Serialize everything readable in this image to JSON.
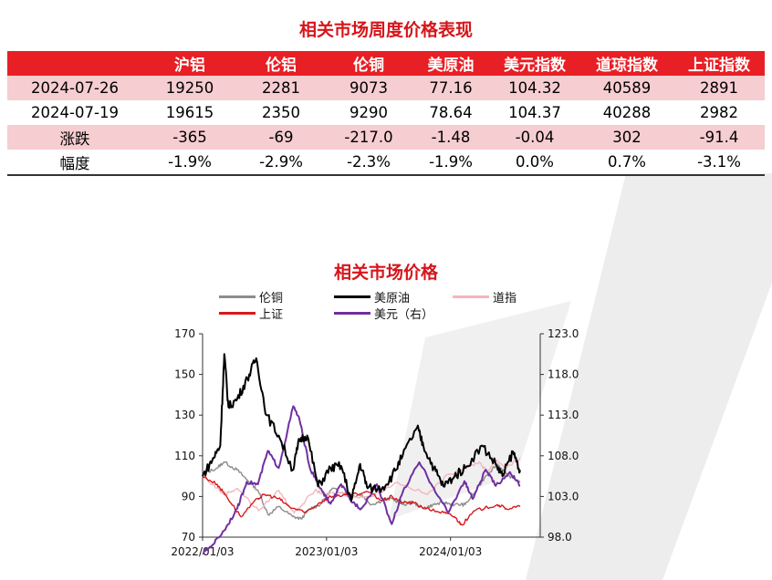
{
  "page_title": "相关市场周度价格表现",
  "table": {
    "headers": [
      "",
      "沪铝",
      "伦铝",
      "伦铜",
      "美原油",
      "美元指数",
      "道琼指数",
      "上证指数"
    ],
    "rows": [
      [
        "2024-07-26",
        "19250",
        "2281",
        "9073",
        "77.16",
        "104.32",
        "40589",
        "2891"
      ],
      [
        "2024-07-19",
        "19615",
        "2350",
        "9290",
        "78.64",
        "104.37",
        "40288",
        "2982"
      ],
      [
        "涨跌",
        "-365",
        "-69",
        "-217.0",
        "-1.48",
        "-0.04",
        "302",
        "-91.4"
      ],
      [
        "幅度",
        "-1.9%",
        "-2.9%",
        "-2.3%",
        "-1.9%",
        "0.0%",
        "0.7%",
        "-3.1%"
      ]
    ]
  },
  "colors": {
    "accent": "#e81f24",
    "title": "#d6151b",
    "row_pink": "#f6cdd0",
    "lme_copper": "#8c8c8c",
    "wti": "#000000",
    "dow": "#f4b6bb",
    "sse": "#d7191c",
    "usd": "#7030a0"
  },
  "chart_data": {
    "type": "line",
    "title": "相关市场价格",
    "legend": [
      "伦铜",
      "美原油",
      "道指",
      "上证",
      "美元（右）"
    ],
    "legend_placement": "top",
    "x_ticks": [
      "2022/01/03",
      "2023/01/03",
      "2024/01/03"
    ],
    "x_range": [
      "2022/01/03",
      "2024/07/26"
    ],
    "y_left": {
      "ylim": [
        70,
        170
      ],
      "ticks": [
        "70",
        "90",
        "110",
        "130",
        "150",
        "170"
      ]
    },
    "y_right": {
      "ylim": [
        98,
        123
      ],
      "ticks": [
        "98.0",
        "103.0",
        "108.0",
        "113.0",
        "118.0",
        "123.0"
      ]
    },
    "grid": false,
    "series": [
      {
        "name": "伦铜",
        "axis": "left",
        "color": "#8c8c8c",
        "x": [
          "2022/01/03",
          "2022/02/15",
          "2022/03/07",
          "2022/04/15",
          "2022/05/15",
          "2022/06/15",
          "2022/07/15",
          "2022/08/15",
          "2022/09/26",
          "2022/10/20",
          "2022/11/15",
          "2022/12/15",
          "2023/01/20",
          "2023/02/15",
          "2023/03/15",
          "2023/04/15",
          "2023/05/15",
          "2023/06/15",
          "2023/07/15",
          "2023/08/15",
          "2023/09/15",
          "2023/10/15",
          "2023/11/15",
          "2023/12/15",
          "2024/01/15",
          "2024/02/15",
          "2024/03/15",
          "2024/04/15",
          "2024/05/20",
          "2024/06/15",
          "2024/07/26"
        ],
        "y": [
          101,
          104,
          107,
          103,
          98,
          93,
          81,
          85,
          80,
          79,
          84,
          86,
          94,
          92,
          90,
          91,
          86,
          88,
          89,
          86,
          87,
          84,
          86,
          87,
          86,
          86,
          92,
          100,
          106,
          101,
          97
        ]
      },
      {
        "name": "美原油",
        "axis": "left",
        "color": "#000000",
        "x": [
          "2022/01/03",
          "2022/02/01",
          "2022/02/24",
          "2022/03/08",
          "2022/03/20",
          "2022/04/15",
          "2022/05/15",
          "2022/06/10",
          "2022/07/10",
          "2022/08/15",
          "2022/09/26",
          "2022/10/15",
          "2022/11/07",
          "2022/12/09",
          "2023/01/15",
          "2023/02/15",
          "2023/03/17",
          "2023/04/12",
          "2023/05/04",
          "2023/06/15",
          "2023/07/15",
          "2023/08/15",
          "2023/09/27",
          "2023/10/15",
          "2023/11/15",
          "2023/12/13",
          "2024/01/15",
          "2024/02/15",
          "2024/04/05",
          "2024/05/15",
          "2024/06/04",
          "2024/07/05",
          "2024/07/26"
        ],
        "y": [
          100,
          108,
          115,
          160,
          134,
          138,
          148,
          158,
          130,
          120,
          103,
          118,
          120,
          95,
          104,
          105,
          88,
          106,
          94,
          94,
          100,
          110,
          124,
          115,
          104,
          95,
          100,
          104,
          115,
          106,
          100,
          112,
          103
        ]
      },
      {
        "name": "道指",
        "axis": "left",
        "color": "#f4b6bb",
        "x": [
          "2022/01/03",
          "2022/03/08",
          "2022/04/15",
          "2022/06/17",
          "2022/08/15",
          "2022/09/30",
          "2022/11/30",
          "2022/12/30",
          "2023/02/15",
          "2023/03/15",
          "2023/05/15",
          "2023/07/31",
          "2023/10/27",
          "2023/12/29",
          "2024/02/15",
          "2024/03/28",
          "2024/04/19",
          "2024/05/17",
          "2024/06/15",
          "2024/07/26"
        ],
        "y": [
          100,
          91,
          94,
          83,
          93,
          82,
          93,
          91,
          92,
          90,
          90,
          97,
          91,
          101,
          104,
          107,
          102,
          108,
          104,
          109
        ]
      },
      {
        "name": "上证",
        "axis": "left",
        "color": "#d7191c",
        "x": [
          "2022/01/03",
          "2022/02/15",
          "2022/03/15",
          "2022/04/26",
          "2022/06/15",
          "2022/07/05",
          "2022/08/15",
          "2022/09/15",
          "2022/10/31",
          "2022/12/15",
          "2023/01/15",
          "2023/02/15",
          "2023/05/09",
          "2023/06/15",
          "2023/07/15",
          "2023/08/15",
          "2023/09/15",
          "2023/10/23",
          "2023/12/15",
          "2024/01/15",
          "2024/02/05",
          "2024/03/15",
          "2024/05/20",
          "2024/06/15",
          "2024/07/26"
        ],
        "y": [
          100,
          96,
          90,
          80,
          89,
          91,
          89,
          85,
          82,
          87,
          90,
          90,
          92,
          88,
          90,
          87,
          87,
          84,
          82,
          80,
          76,
          83,
          86,
          84,
          85
        ]
      },
      {
        "name": "美元（右）",
        "axis": "right",
        "color": "#7030a0",
        "x": [
          "2022/01/03",
          "2022/01/31",
          "2022/03/07",
          "2022/04/15",
          "2022/05/13",
          "2022/06/15",
          "2022/07/14",
          "2022/08/15",
          "2022/09/27",
          "2022/10/15",
          "2022/11/15",
          "2022/12/15",
          "2023/01/15",
          "2023/02/15",
          "2023/03/15",
          "2023/04/15",
          "2023/05/31",
          "2023/07/14",
          "2023/08/15",
          "2023/10/03",
          "2023/11/15",
          "2023/12/27",
          "2024/02/13",
          "2024/03/08",
          "2024/04/16",
          "2024/05/15",
          "2024/06/26",
          "2024/07/26"
        ],
        "y": [
          96.0,
          97.0,
          98.8,
          101.5,
          104.8,
          104.5,
          108.6,
          106.5,
          114.1,
          112.5,
          106.5,
          104.0,
          102.1,
          104.5,
          102.5,
          101.5,
          104.5,
          99.6,
          103.5,
          107.2,
          104.0,
          101.0,
          104.9,
          102.7,
          106.3,
          104.3,
          106.0,
          104.3
        ]
      }
    ]
  }
}
